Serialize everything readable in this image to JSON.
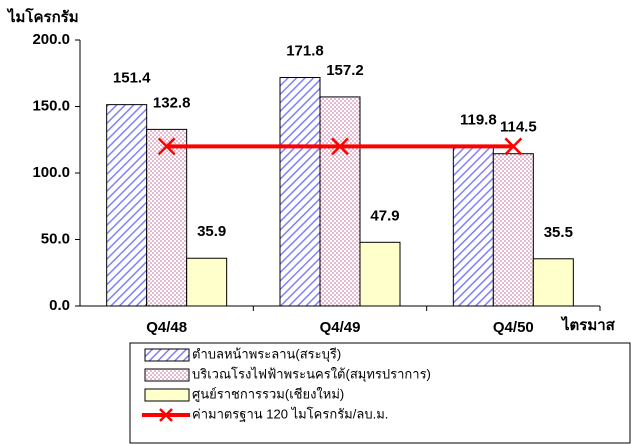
{
  "chart_data": {
    "type": "bar",
    "y_label": "ไมโครกรัม",
    "x_label": "ไตรมาส",
    "categories": [
      "Q4/48",
      "Q4/49",
      "Q4/50"
    ],
    "series": [
      {
        "name": "ตำบลหน้าพระลาน(สระบุรี)",
        "color": "#8080ff",
        "values": [
          151.4,
          171.8,
          119.8
        ]
      },
      {
        "name": "บริเวณโรงไฟฟ้าพระนครใต้(สมุทรปราการ)",
        "color": "#cc6699",
        "values": [
          132.8,
          157.2,
          114.5
        ]
      },
      {
        "name": "ศูนย์ราชการรวม(เชียงใหม่)",
        "color": "#ffffcc",
        "values": [
          35.9,
          47.9,
          35.5
        ]
      },
      {
        "name": "ค่ามาตรฐาน 120 ไมโครกรัม/ลบ.ม.",
        "color": "#ff0000",
        "type": "line",
        "values": [
          120,
          120,
          120
        ]
      }
    ],
    "ylim": [
      0,
      200
    ],
    "yticks": [
      {
        "value": 0,
        "label": "0.0"
      },
      {
        "value": 50,
        "label": "50.0"
      },
      {
        "value": 100,
        "label": "100.0"
      },
      {
        "value": 150,
        "label": "150.0"
      },
      {
        "value": 200,
        "label": "200.0"
      }
    ],
    "legend": "bottom"
  }
}
